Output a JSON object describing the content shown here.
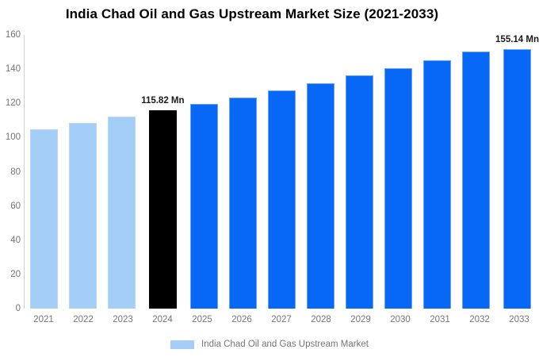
{
  "chart_data": {
    "type": "bar",
    "title": "India Chad Oil and Gas Upstream Market Size (2021-2033)",
    "legend": "India Chad Oil and Gas Upstream Market",
    "unit": "Mn",
    "categories": [
      "2021",
      "2022",
      "2023",
      "2024",
      "2025",
      "2026",
      "2027",
      "2028",
      "2029",
      "2030",
      "2031",
      "2032",
      "2033"
    ],
    "values": [
      104.97,
      108.43,
      112.01,
      115.82,
      119.64,
      123.59,
      127.67,
      131.88,
      136.23,
      140.73,
      145.37,
      150.17,
      155.14
    ],
    "ylim": [
      0,
      160
    ],
    "yticks": [
      0,
      20,
      40,
      60,
      80,
      100,
      120,
      140,
      160
    ],
    "xlabel": "",
    "ylabel": "",
    "grid": false,
    "legend_position": "bottom",
    "annotations": [
      {
        "category": "2024",
        "text": "115.82 Mn"
      },
      {
        "category": "2033",
        "text": "155.14 Mn"
      }
    ],
    "colors": {
      "historical": "#A4CEF8",
      "highlight": "#000000",
      "forecast": "#0868F6",
      "historical_border": "#B6D6FA",
      "forecast_border": "#66A0F7",
      "axis_line": "#D0D0D0",
      "tick_text": "#757575",
      "annotation_text": "#1A1A1A"
    },
    "color_roles": [
      "historical",
      "historical",
      "historical",
      "highlight",
      "forecast",
      "forecast",
      "forecast",
      "forecast",
      "forecast",
      "forecast",
      "forecast",
      "forecast",
      "forecast"
    ]
  }
}
